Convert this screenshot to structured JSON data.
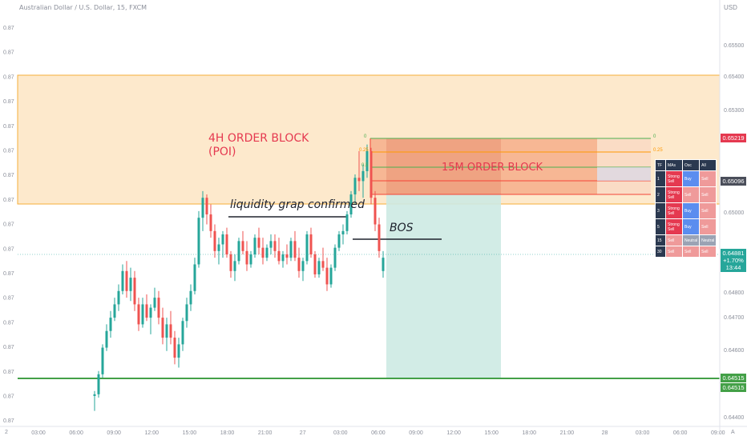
{
  "symbol_title": "Australian Dollar / U.S. Dollar, 15, FXCM",
  "currency": "USD",
  "left_axis_labels": [
    "0.87",
    "0.87",
    "0.87",
    "0.87",
    "0.87",
    "0.87",
    "0.87",
    "0.87",
    "0.87",
    "0.87",
    "0.87",
    "0.87",
    "0.87",
    "0.87",
    "0.87",
    "0.87",
    "0.87",
    "0.87"
  ],
  "right_axis_labels": [
    "0.65500",
    "0.65400",
    "0.65300",
    "0.65000",
    "0.64800",
    "0.64700",
    "0.64600",
    "0.64400"
  ],
  "time_labels": [
    "03:00",
    "06:00",
    "09:00",
    "12:00",
    "15:00",
    "18:00",
    "21:00",
    "27",
    "03:00",
    "06:00",
    "09:00",
    "12:00",
    "15:00",
    "18:00",
    "21:00",
    "28",
    "03:00",
    "06:00",
    "09:00"
  ],
  "corner_left": "2",
  "corner_right": "A",
  "annotations": {
    "ob4h_line1": "4H ORDER BLOCK",
    "ob4h_line2": "(POI)",
    "ob15m": "15M ORDER BLOCK",
    "liquidity": "liquidity grap confirmed",
    "bos": "BOS"
  },
  "fib_labels": {
    "left": [
      "0",
      "0.25",
      "0.5",
      "0.5",
      "0.75"
    ],
    "right": [
      "0",
      "0.25"
    ]
  },
  "price_tags": {
    "red": "0.65219",
    "gray": "0.65096",
    "current": "0.64881",
    "current_change": "+1.70%",
    "current_time": "13:44",
    "green1": "0.64515",
    "green2": "0.64515"
  },
  "colors": {
    "bull": "#26a69a",
    "bear": "#ef5350",
    "zone_4h": "#fde7c7",
    "zone_15m": "#f4a582",
    "target": "#cdeae3",
    "support": "#43a047"
  },
  "table": {
    "headers": [
      "TF",
      "MAs",
      "Osc",
      "All"
    ],
    "rows": [
      {
        "tf": "1",
        "mas": "Strong Sell",
        "osc": "Buy",
        "all": "Sell"
      },
      {
        "tf": "2",
        "mas": "Strong Sell",
        "osc": "Sell",
        "all": "Sell"
      },
      {
        "tf": "3",
        "mas": "Strong Sell",
        "osc": "Buy",
        "all": "Sell"
      },
      {
        "tf": "5",
        "mas": "Strong Sell",
        "osc": "Buy",
        "all": "Sell"
      },
      {
        "tf": "15",
        "mas": "Sell",
        "osc": "Neutral",
        "all": "Neutral"
      },
      {
        "tf": "30",
        "mas": "Sell",
        "osc": "Sell",
        "all": "Sell"
      }
    ]
  },
  "candles": [
    [
      0.64465,
      0.6448,
      0.6442,
      0.6447
    ],
    [
      0.6447,
      0.6454,
      0.6446,
      0.6453
    ],
    [
      0.6453,
      0.6462,
      0.6452,
      0.6461
    ],
    [
      0.6461,
      0.6468,
      0.646,
      0.6466
    ],
    [
      0.6466,
      0.6472,
      0.6464,
      0.647
    ],
    [
      0.647,
      0.6476,
      0.6469,
      0.6474
    ],
    [
      0.6474,
      0.648,
      0.6472,
      0.6478
    ],
    [
      0.6478,
      0.6486,
      0.6477,
      0.6484
    ],
    [
      0.6484,
      0.6487,
      0.6476,
      0.6478
    ],
    [
      0.6478,
      0.6485,
      0.6475,
      0.6482
    ],
    [
      0.6482,
      0.6484,
      0.6472,
      0.6474
    ],
    [
      0.6474,
      0.6476,
      0.6466,
      0.6468
    ],
    [
      0.6468,
      0.6476,
      0.6467,
      0.6474
    ],
    [
      0.6474,
      0.6477,
      0.6469,
      0.647
    ],
    [
      0.647,
      0.6474,
      0.6465,
      0.6473
    ],
    [
      0.6473,
      0.6479,
      0.6472,
      0.6476
    ],
    [
      0.6476,
      0.6478,
      0.6468,
      0.647
    ],
    [
      0.647,
      0.6473,
      0.6462,
      0.6464
    ],
    [
      0.6464,
      0.647,
      0.646,
      0.6468
    ],
    [
      0.6468,
      0.6472,
      0.6462,
      0.6464
    ],
    [
      0.6464,
      0.6466,
      0.6456,
      0.6458
    ],
    [
      0.6458,
      0.6464,
      0.6455,
      0.6462
    ],
    [
      0.6462,
      0.647,
      0.646,
      0.6469
    ],
    [
      0.6469,
      0.6476,
      0.6467,
      0.6474
    ],
    [
      0.6474,
      0.648,
      0.6472,
      0.6478
    ],
    [
      0.6478,
      0.6488,
      0.6477,
      0.6486
    ],
    [
      0.6486,
      0.6502,
      0.6485,
      0.65
    ],
    [
      0.65,
      0.6508,
      0.6496,
      0.6506
    ],
    [
      0.6506,
      0.6507,
      0.6498,
      0.6501
    ],
    [
      0.6501,
      0.6504,
      0.6494,
      0.6496
    ],
    [
      0.6496,
      0.6498,
      0.6488,
      0.649
    ],
    [
      0.649,
      0.6494,
      0.6486,
      0.6492
    ],
    [
      0.6492,
      0.6496,
      0.6488,
      0.6495
    ],
    [
      0.6495,
      0.6497,
      0.6488,
      0.6489
    ],
    [
      0.6489,
      0.649,
      0.6482,
      0.6484
    ],
    [
      0.6484,
      0.6489,
      0.6481,
      0.6487
    ],
    [
      0.6487,
      0.6494,
      0.6486,
      0.6493
    ],
    [
      0.6493,
      0.6496,
      0.6489,
      0.649
    ],
    [
      0.649,
      0.6493,
      0.6484,
      0.6486
    ],
    [
      0.6486,
      0.649,
      0.6485,
      0.6489
    ],
    [
      0.6489,
      0.6495,
      0.6488,
      0.6494
    ],
    [
      0.6494,
      0.6497,
      0.6489,
      0.6491
    ],
    [
      0.6491,
      0.6494,
      0.6486,
      0.6488
    ],
    [
      0.6488,
      0.6492,
      0.6487,
      0.6491
    ],
    [
      0.6491,
      0.6495,
      0.6489,
      0.6493
    ],
    [
      0.6493,
      0.6495,
      0.6488,
      0.649
    ],
    [
      0.649,
      0.6494,
      0.6486,
      0.6487
    ],
    [
      0.6487,
      0.649,
      0.6485,
      0.6489
    ],
    [
      0.6489,
      0.6492,
      0.6486,
      0.6488
    ],
    [
      0.6488,
      0.6494,
      0.6487,
      0.6493
    ],
    [
      0.6493,
      0.6496,
      0.6487,
      0.6488
    ],
    [
      0.6488,
      0.6491,
      0.6482,
      0.6484
    ],
    [
      0.6484,
      0.6488,
      0.6481,
      0.6487
    ],
    [
      0.6487,
      0.6496,
      0.6486,
      0.6495
    ],
    [
      0.6495,
      0.6497,
      0.6488,
      0.6489
    ],
    [
      0.6489,
      0.649,
      0.6482,
      0.6483
    ],
    [
      0.6483,
      0.6488,
      0.6482,
      0.6487
    ],
    [
      0.6487,
      0.6491,
      0.6484,
      0.6485
    ],
    [
      0.6485,
      0.6488,
      0.6478,
      0.648
    ],
    [
      0.648,
      0.6486,
      0.6479,
      0.6485
    ],
    [
      0.6485,
      0.6492,
      0.6484,
      0.6491
    ],
    [
      0.6491,
      0.6496,
      0.649,
      0.6495
    ],
    [
      0.6495,
      0.6498,
      0.6492,
      0.6496
    ],
    [
      0.6496,
      0.6502,
      0.6495,
      0.6501
    ],
    [
      0.6501,
      0.6508,
      0.65,
      0.6507
    ],
    [
      0.6507,
      0.6513,
      0.6504,
      0.6512
    ],
    [
      0.6512,
      0.652,
      0.6508,
      0.6511
    ],
    [
      0.6511,
      0.6516,
      0.6506,
      0.6514
    ],
    [
      0.6514,
      0.6522,
      0.6512,
      0.652
    ],
    [
      0.652,
      0.6521,
      0.6504,
      0.6506
    ],
    [
      0.6506,
      0.6508,
      0.6496,
      0.6498
    ],
    [
      0.6498,
      0.65,
      0.6488,
      0.649
    ],
    [
      0.6484,
      0.649,
      0.6482,
      0.6488
    ]
  ]
}
